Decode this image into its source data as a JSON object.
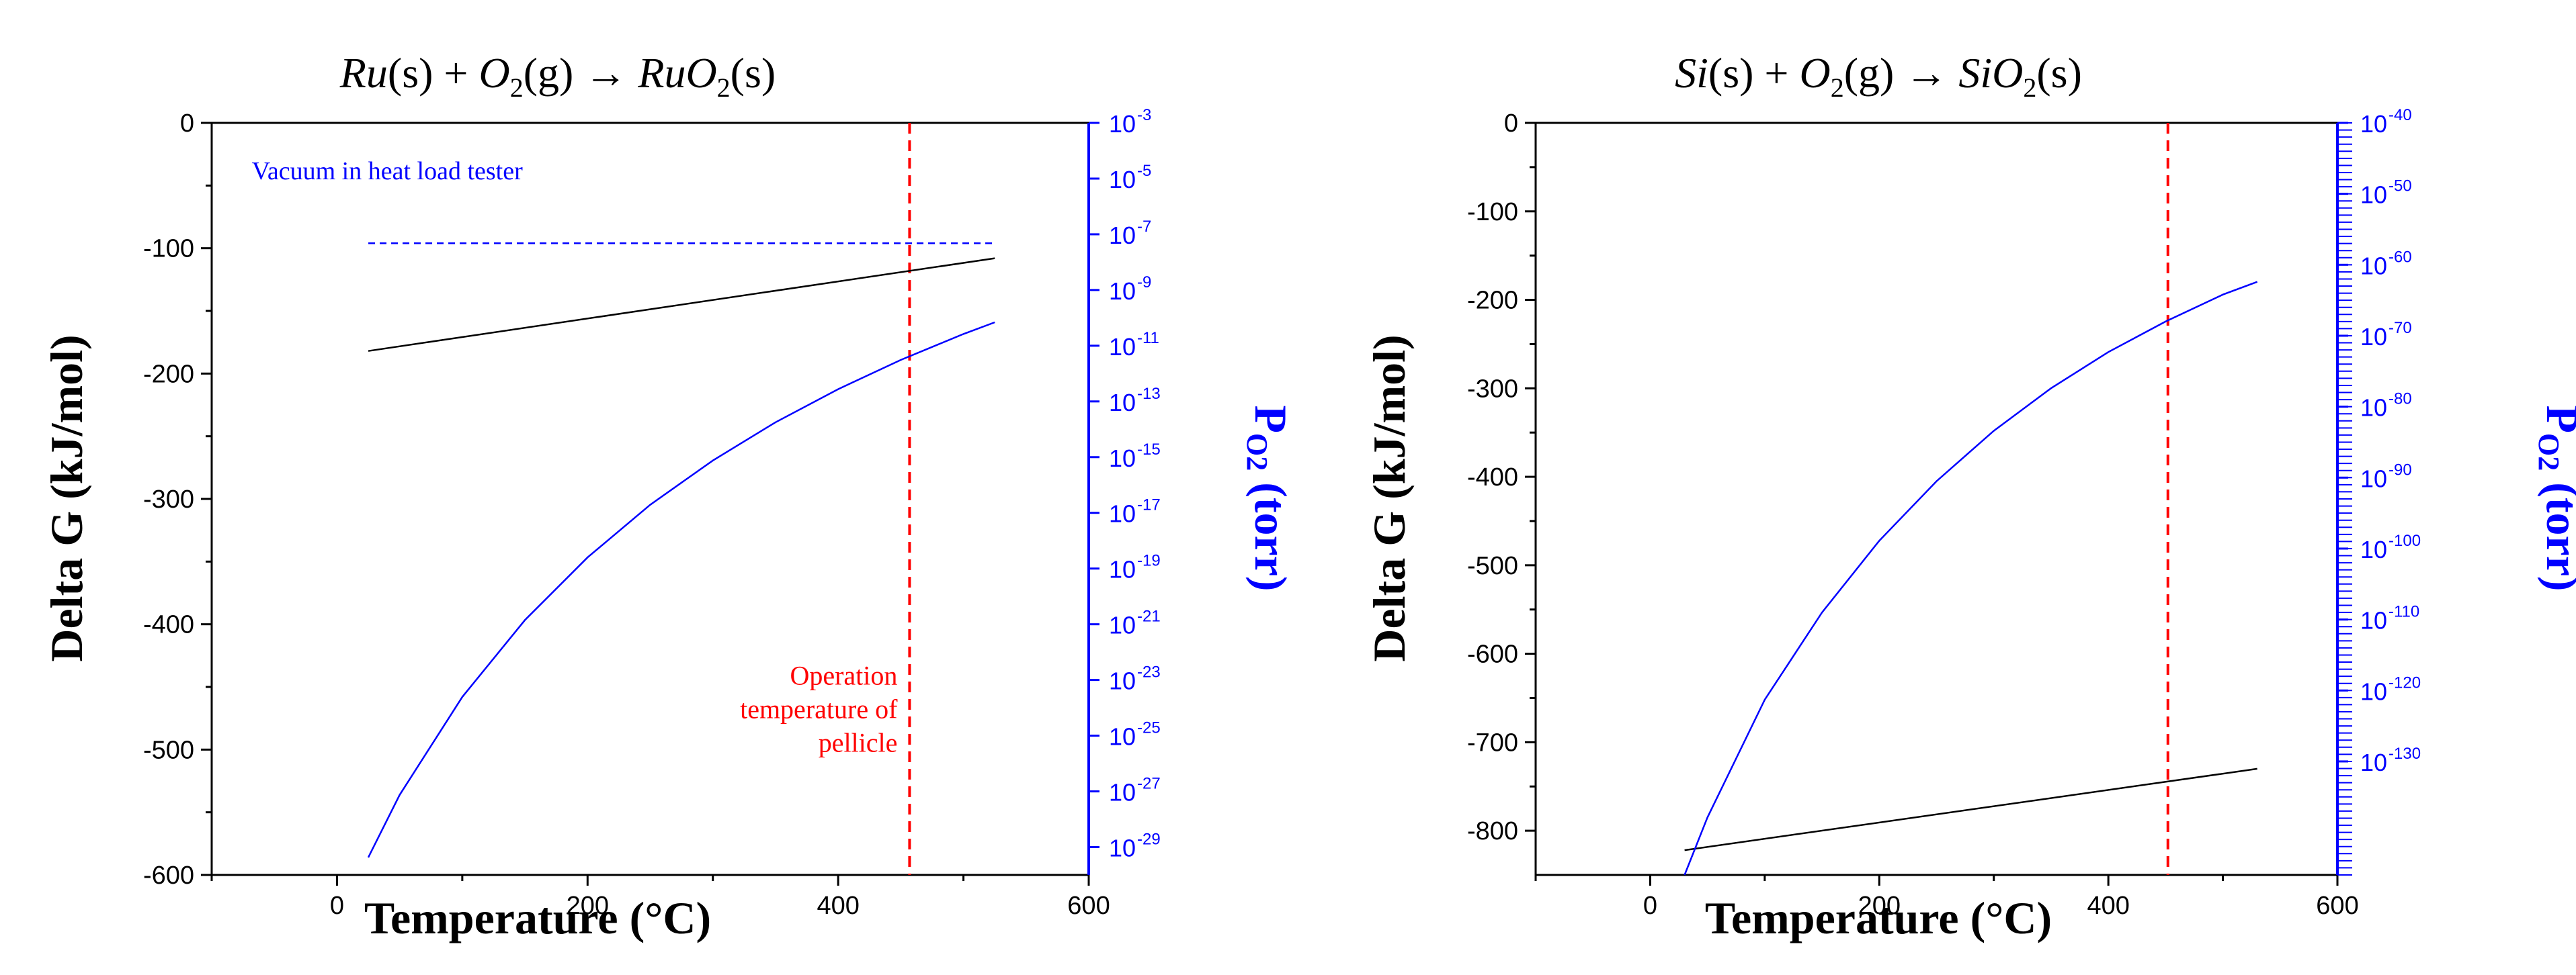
{
  "colors": {
    "axis": "#000000",
    "right_axis": "#0000ff",
    "delta_g_line": "#000000",
    "po2_line": "#0000ff",
    "operation_line": "#ff0000",
    "vacuum_line": "#0000ff"
  },
  "chart_data": [
    {
      "type": "line",
      "title": "Ru(s) + O2(g) → RuO2(s)",
      "title_parts": {
        "a": "Ru",
        "b": "(s) + ",
        "c": "O",
        "c_sub": "2",
        "d": "(g) → ",
        "e": "RuO",
        "e_sub": "2",
        "f": "(s)"
      },
      "xlabel": "Temperature (°C)",
      "ylabel": "Delta G (kJ/mol)",
      "y2label": {
        "main": "P",
        "sub": "O2",
        "rest": " (torr)"
      },
      "xlim": [
        -100,
        600
      ],
      "xticks": [
        0,
        200,
        400,
        600
      ],
      "ylim": [
        -600,
        0
      ],
      "yticks": [
        0,
        -100,
        -200,
        -300,
        -400,
        -500,
        -600
      ],
      "y2_log_exp_range": [
        -30,
        -3
      ],
      "y2_tick_exps": [
        -3,
        -5,
        -7,
        -9,
        -11,
        -13,
        -15,
        -17,
        -19,
        -21,
        -23,
        -25,
        -27,
        -29
      ],
      "y2_tick_labels": [
        "10",
        "10",
        "10",
        "10",
        "10",
        "10",
        "10",
        "10",
        "10",
        "10",
        "10",
        "10",
        "10",
        "10"
      ],
      "y2_tick_sups": [
        "-3",
        "-5",
        "-7",
        "-9",
        "-11",
        "-13",
        "-15",
        "-17",
        "-19",
        "-21",
        "-23",
        "-25",
        "-27",
        "-29"
      ],
      "y2_minor_ticks": false,
      "series": [
        {
          "name": "Delta G",
          "axis": "left",
          "x": [
            25,
            525
          ],
          "y": [
            -182,
            -108
          ]
        },
        {
          "name": "P_O2",
          "axis": "right",
          "x": [
            25,
            50,
            100,
            150,
            200,
            250,
            300,
            350,
            400,
            450,
            500,
            525
          ],
          "y": [
            -29.37,
            -27.13,
            -23.61,
            -20.85,
            -18.6,
            -16.71,
            -15.12,
            -13.75,
            -12.56,
            -11.51,
            -10.58,
            -10.16
          ]
        }
      ],
      "vlines": [
        {
          "x": 457,
          "label": "operation"
        }
      ],
      "hlines": [
        {
          "y": -96,
          "x_range": [
            25,
            525
          ],
          "label": "vacuum"
        }
      ],
      "annotations": {
        "vacuum": "Vacuum in heat load tester",
        "operation_lines": [
          "Operation",
          "temperature of",
          "pellicle"
        ]
      }
    },
    {
      "type": "line",
      "title": "Si(s) + O2(g) → SiO2(s)",
      "title_parts": {
        "a": "Si",
        "b": "(s) + ",
        "c": "O",
        "c_sub": "2",
        "d": "(g) → ",
        "e": "SiO",
        "e_sub": "2",
        "f": "(s)"
      },
      "xlabel": "Temperature (°C)",
      "ylabel": "Delta G (kJ/mol)",
      "y2label": {
        "main": "P",
        "sub": "O2",
        "rest": " (torr)"
      },
      "xlim": [
        -100,
        600
      ],
      "xticks": [
        0,
        200,
        400,
        600
      ],
      "ylim": [
        -850,
        0
      ],
      "yticks": [
        0,
        -100,
        -200,
        -300,
        -400,
        -500,
        -600,
        -700,
        -800
      ],
      "y2_log_exp_range": [
        -146,
        -40
      ],
      "y2_tick_exps": [
        -40,
        -50,
        -60,
        -70,
        -80,
        -90,
        -100,
        -110,
        -120,
        -130
      ],
      "y2_tick_labels": [
        "10",
        "10",
        "10",
        "10",
        "10",
        "10",
        "10",
        "10",
        "10",
        "10"
      ],
      "y2_tick_sups": [
        "-40",
        "-50",
        "-60",
        "-70",
        "-80",
        "-90",
        "-100",
        "-110",
        "-120",
        "-130"
      ],
      "y2_minor_ticks": true,
      "series": [
        {
          "name": "Delta G",
          "axis": "left",
          "x": [
            30,
            530
          ],
          "y": [
            -822,
            -730
          ]
        },
        {
          "name": "P_O2",
          "axis": "right",
          "x": [
            30,
            50,
            100,
            150,
            200,
            250,
            300,
            350,
            400,
            450,
            500,
            530
          ],
          "y": [
            -146.0,
            -137.9,
            -121.3,
            -109.0,
            -98.9,
            -90.5,
            -83.4,
            -77.4,
            -72.3,
            -68.0,
            -64.2,
            -62.4
          ]
        }
      ],
      "vlines": [
        {
          "x": 452,
          "label": "operation"
        }
      ],
      "hlines": [],
      "annotations": {}
    }
  ]
}
